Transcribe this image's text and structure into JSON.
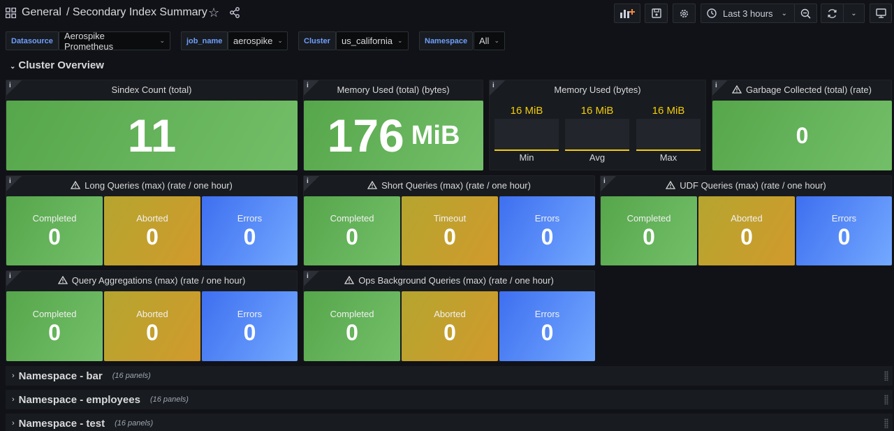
{
  "header": {
    "folder": "General",
    "title": "/ Secondary Index Summary",
    "time_range": "Last 3 hours"
  },
  "variables": [
    {
      "label": "Datasource",
      "value": "Aerospike Prometheus"
    },
    {
      "label": "job_name",
      "value": "aerospike"
    },
    {
      "label": "Cluster",
      "value": "us_california"
    },
    {
      "label": "Namespace",
      "value": "All"
    }
  ],
  "row": {
    "title": "Cluster Overview"
  },
  "panels": {
    "sindex": {
      "title": "Sindex Count (total)",
      "value": "11"
    },
    "mem_total": {
      "title": "Memory Used (total) (bytes)",
      "value": "176",
      "unit": "MiB"
    },
    "mem_used": {
      "title": "Memory Used (bytes)",
      "stats": [
        {
          "label": "Min",
          "value": "16 MiB"
        },
        {
          "label": "Avg",
          "value": "16 MiB"
        },
        {
          "label": "Max",
          "value": "16 MiB"
        }
      ]
    },
    "gc": {
      "title": "Garbage Collected (total) (rate)",
      "value": "0"
    },
    "long_q": {
      "title": "Long Queries (max) (rate / one hour)",
      "stats": [
        {
          "label": "Completed",
          "value": "0"
        },
        {
          "label": "Aborted",
          "value": "0"
        },
        {
          "label": "Errors",
          "value": "0"
        }
      ]
    },
    "short_q": {
      "title": "Short Queries (max) (rate / one hour)",
      "stats": [
        {
          "label": "Completed",
          "value": "0"
        },
        {
          "label": "Timeout",
          "value": "0"
        },
        {
          "label": "Errors",
          "value": "0"
        }
      ]
    },
    "udf_q": {
      "title": "UDF Queries (max) (rate / one hour)",
      "stats": [
        {
          "label": "Completed",
          "value": "0"
        },
        {
          "label": "Aborted",
          "value": "0"
        },
        {
          "label": "Errors",
          "value": "0"
        }
      ]
    },
    "agg_q": {
      "title": "Query Aggregations (max) (rate / one hour)",
      "stats": [
        {
          "label": "Completed",
          "value": "0"
        },
        {
          "label": "Aborted",
          "value": "0"
        },
        {
          "label": "Errors",
          "value": "0"
        }
      ]
    },
    "ops_q": {
      "title": "Ops Background Queries (max) (rate / one hour)",
      "stats": [
        {
          "label": "Completed",
          "value": "0"
        },
        {
          "label": "Aborted",
          "value": "0"
        },
        {
          "label": "Errors",
          "value": "0"
        }
      ]
    }
  },
  "namespace_rows": [
    {
      "title": "Namespace - bar",
      "count": "(16 panels)"
    },
    {
      "title": "Namespace - employees",
      "count": "(16 panels)"
    },
    {
      "title": "Namespace - test",
      "count": "(16 panels)"
    }
  ],
  "info_glyph": "i",
  "colors": {
    "green": "#73bf69",
    "yellow": "#d19a2c",
    "blue": "#5794f2",
    "accent_text": "#f2cc0c",
    "variable_label": "#6e9fff"
  }
}
